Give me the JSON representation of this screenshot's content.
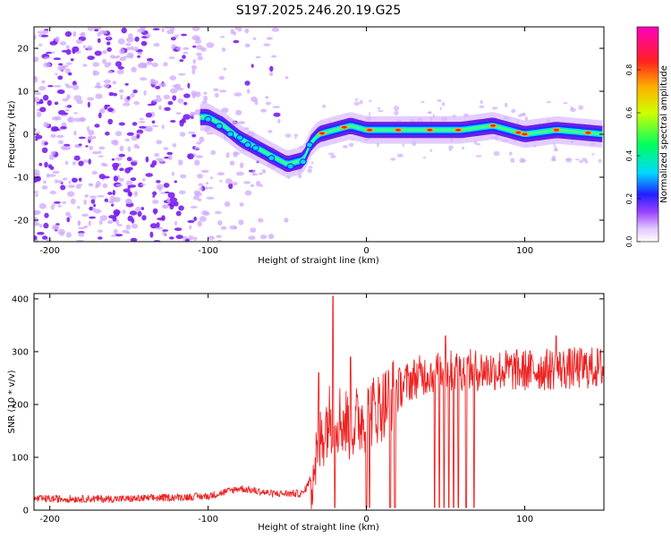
{
  "title": "S197.2025.246.20.19.G25",
  "chart_data": [
    {
      "type": "heatmap",
      "name": "spectrogram",
      "xlabel": "Height of straight line (km)",
      "ylabel": "Frequency (Hz)",
      "xlim": [
        -210,
        150
      ],
      "ylim": [
        -25,
        25
      ],
      "xticks": [
        -200,
        -100,
        0,
        100
      ],
      "yticks": [
        -20,
        -10,
        0,
        10,
        20
      ],
      "colorbar": {
        "label": "Normalized spectral amplitude",
        "range": [
          0.0,
          1.0
        ],
        "ticks": [
          0.0,
          0.2,
          0.4,
          0.6,
          0.8
        ],
        "colors": [
          "#ffffff",
          "#d8b8ff",
          "#8a2be2",
          "#2020ff",
          "#00e5ff",
          "#00ff60",
          "#d0ff00",
          "#ffb000",
          "#ff2020",
          "#ff00c0"
        ]
      },
      "ridge": {
        "description": "dominant frequency track",
        "x": [
          -100,
          -90,
          -80,
          -70,
          -60,
          -50,
          -40,
          -35,
          -30,
          -20,
          -10,
          0,
          20,
          40,
          60,
          80,
          100,
          120,
          150
        ],
        "y": [
          4,
          2,
          -1,
          -3,
          -5,
          -7,
          -6,
          -2,
          0,
          1,
          2,
          1,
          1,
          1,
          1,
          2,
          0,
          1,
          0
        ]
      }
    },
    {
      "type": "line",
      "name": "snr",
      "xlabel": "Height of straight line (km)",
      "ylabel": "SNR (10 * v/v)",
      "xlim": [
        -210,
        150
      ],
      "ylim": [
        0,
        410
      ],
      "xticks": [
        -200,
        -100,
        0,
        100
      ],
      "yticks": [
        0,
        100,
        200,
        300,
        400
      ],
      "color": "#ee2222",
      "envelope": {
        "x": [
          -210,
          -150,
          -100,
          -80,
          -60,
          -40,
          -35,
          -30,
          -25,
          -20,
          -10,
          0,
          10,
          20,
          30,
          40,
          60,
          100,
          150
        ],
        "y": [
          20,
          20,
          25,
          40,
          30,
          30,
          60,
          120,
          170,
          180,
          160,
          180,
          200,
          230,
          250,
          260,
          265,
          265,
          270
        ]
      },
      "spikes": [
        {
          "x": -21,
          "y": 405
        },
        {
          "x": -30,
          "y": 260
        },
        {
          "x": -10,
          "y": 290
        },
        {
          "x": 50,
          "y": 330
        },
        {
          "x": 120,
          "y": 330
        }
      ],
      "dropouts_x": [
        -20,
        -10,
        0,
        2,
        15,
        18,
        43,
        46,
        49,
        52,
        55,
        58,
        63,
        68
      ]
    }
  ]
}
